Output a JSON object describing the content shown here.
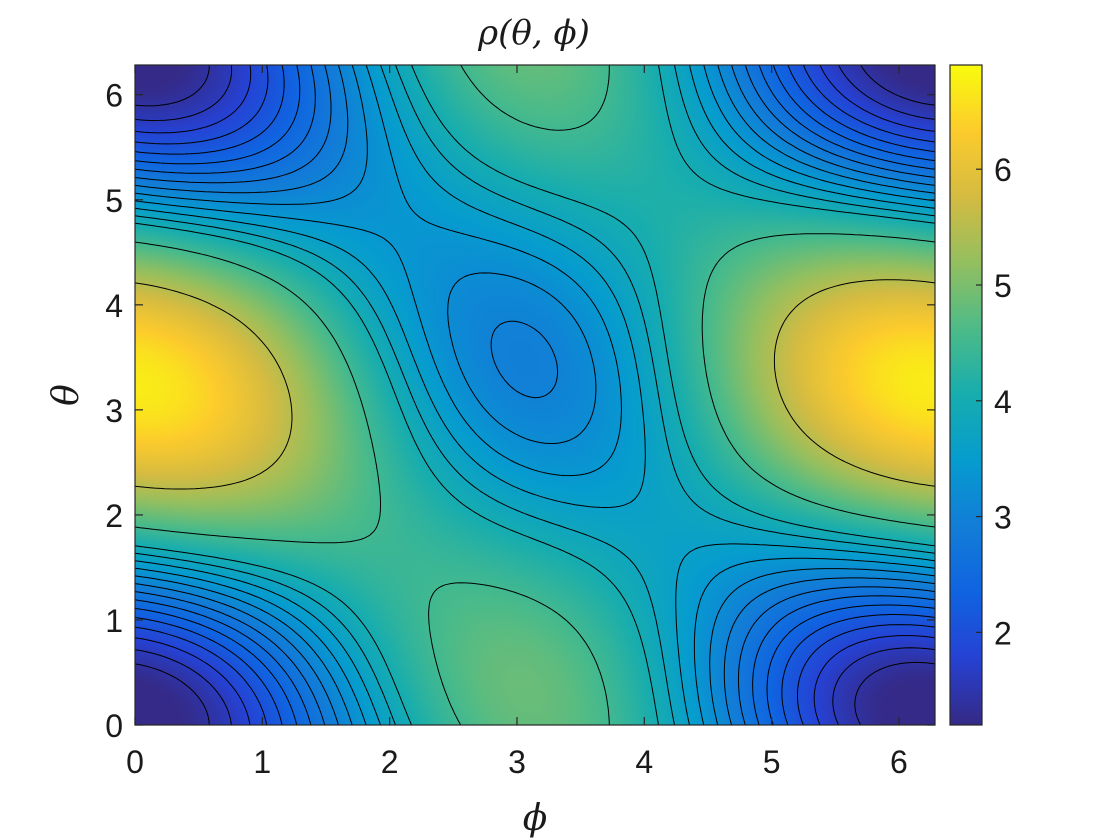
{
  "chart_data": {
    "type": "heatmap",
    "subtype": "filled-contour",
    "title": "ρ(θ, ϕ)",
    "xlabel": "ϕ",
    "ylabel": "θ",
    "xlim": [
      0,
      6.2832
    ],
    "ylim": [
      0,
      6.2832
    ],
    "xticks": [
      0,
      1,
      2,
      3,
      4,
      5,
      6
    ],
    "yticks": [
      0,
      1,
      2,
      3,
      4,
      5,
      6
    ],
    "colormap": "parula",
    "colorbar": {
      "range": [
        1.2,
        6.9
      ],
      "ticks": [
        2,
        3,
        4,
        5,
        6
      ],
      "placement": "right"
    },
    "contour_line_color": "#000000",
    "contour_levels": [
      1.4,
      1.6,
      1.8,
      2.0,
      2.2,
      2.4,
      2.6,
      2.8,
      3.0,
      3.2,
      3.4,
      3.6,
      3.8,
      4.0,
      4.5,
      5.5
    ],
    "surface_features": [
      {
        "kind": "maximum",
        "phi": 0.0,
        "theta": 3.3,
        "value": 6.9
      },
      {
        "kind": "maximum",
        "phi": 6.2832,
        "theta": 3.0,
        "value": 6.9
      },
      {
        "kind": "minimum",
        "phi": 0.6,
        "theta": 0.4,
        "value": 1.3
      },
      {
        "kind": "minimum",
        "phi": 5.6,
        "theta": 5.9,
        "value": 1.3
      },
      {
        "kind": "saddle",
        "phi": 3.2,
        "theta": 3.1,
        "value": 2.9
      }
    ]
  }
}
